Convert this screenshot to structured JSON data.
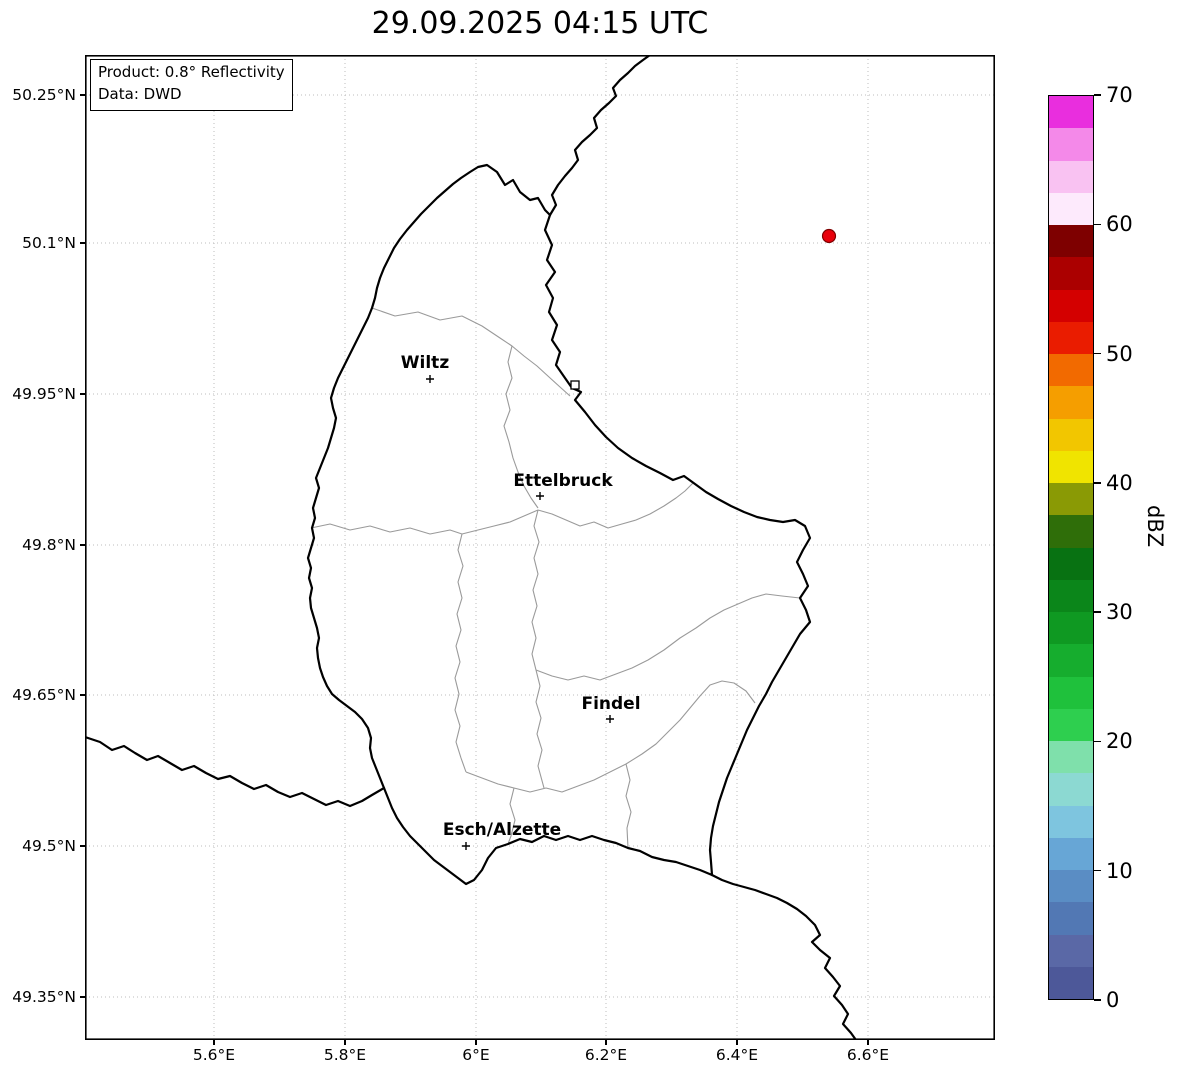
{
  "title": "29.09.2025 04:15 UTC",
  "info_box": {
    "product": "Product: 0.8° Reflectivity",
    "source": "Data: DWD"
  },
  "axes": {
    "x_tick_labels": [
      "5.6°E",
      "5.8°E",
      "6°E",
      "6.2°E",
      "6.4°E",
      "6.6°E"
    ],
    "y_tick_labels": [
      "50.25°N",
      "50.1°N",
      "49.95°N",
      "49.8°N",
      "49.65°N",
      "49.5°N",
      "49.35°N"
    ]
  },
  "map": {
    "cities": [
      {
        "name": "Wiltz"
      },
      {
        "name": "Ettelbruck"
      },
      {
        "name": "Findel"
      },
      {
        "name": "Esch/Alzette"
      }
    ],
    "marker": {
      "type": "radar-echo-dot",
      "color": "#e8000b"
    }
  },
  "colorbar": {
    "label": "dBZ",
    "min": 0,
    "max": 70,
    "ticks": [
      0,
      10,
      20,
      30,
      40,
      50,
      60,
      70
    ],
    "colors_bottom_to_top": [
      "#4d5899",
      "#5a68a6",
      "#5278b4",
      "#5a8dc4",
      "#67a6d6",
      "#7ec5df",
      "#8cd9d2",
      "#7fe0ab",
      "#2ecf4f",
      "#1fc13c",
      "#16ad2e",
      "#0f9922",
      "#0b861a",
      "#087212",
      "#2f6e09",
      "#8a9a05",
      "#f0e400",
      "#f2c600",
      "#f59e00",
      "#f26a00",
      "#ea1c00",
      "#d40000",
      "#ab0000",
      "#7e0000",
      "#fdeafc",
      "#f9c2f2",
      "#f489e9",
      "#e92ede"
    ]
  },
  "chart_data": {
    "type": "map",
    "title": "29.09.2025 04:15 UTC",
    "description": "Weather radar reflectivity map over Luxembourg with national border, canton boundaries and city markers",
    "product": "0.8° Reflectivity",
    "data_source": "DWD",
    "x_axis_ticks_deg_east": [
      5.6,
      5.8,
      6.0,
      6.2,
      6.4,
      6.6
    ],
    "y_axis_ticks_deg_north": [
      50.25,
      50.1,
      49.95,
      49.8,
      49.65,
      49.5,
      49.35
    ],
    "cities": [
      "Wiltz",
      "Ettelbruck",
      "Findel",
      "Esch/Alzette"
    ],
    "colorbar": {
      "label": "dBZ",
      "min": 0,
      "max": 70,
      "ticks": [
        0,
        10,
        20,
        30,
        40,
        50,
        60,
        70
      ]
    },
    "points": [
      {
        "lon_deg_east": 6.54,
        "lat_deg_north": 50.11,
        "approx_value_dbz": 50
      }
    ],
    "grid": "dotted"
  }
}
